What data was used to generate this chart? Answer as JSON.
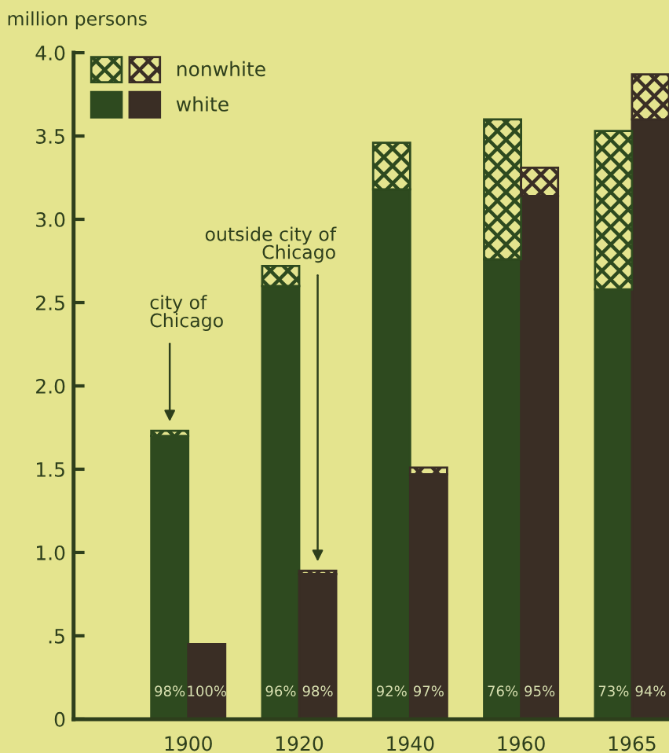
{
  "chart_data": {
    "type": "bar",
    "stacked": true,
    "ylabel": "million persons",
    "categories": [
      "1900",
      null,
      null,
      "1920",
      null,
      null,
      "1940",
      null,
      null,
      "1960",
      null,
      null,
      "1965",
      null
    ],
    "series": [
      {
        "name": "white",
        "colors": [
          "#2e4a1f",
          "#3a2e25",
          null,
          "#2e4a1f",
          "#3a2e25",
          null,
          "#2e4a1f",
          "#3a2e25",
          null,
          "#2e4a1f",
          "#3a2e25",
          null,
          "#2e4a1f",
          "#3a2e25"
        ],
        "values": [
          1.7,
          0.45,
          null,
          2.6,
          0.87,
          null,
          3.18,
          1.47,
          null,
          2.76,
          3.14,
          null,
          2.58,
          3.6
        ]
      },
      {
        "name": "nonwhite",
        "colors": [
          "#2e4a1f",
          "#3a2e25",
          null,
          "#2e4a1f",
          "#3a2e25",
          null,
          "#2e4a1f",
          "#3a2e25",
          null,
          "#2e4a1f",
          "#3a2e25",
          null,
          "#2e4a1f",
          "#3a2e25"
        ],
        "values": [
          0.03,
          null,
          null,
          0.12,
          0.02,
          null,
          0.28,
          0.04,
          null,
          0.84,
          0.17,
          null,
          0.95,
          0.27
        ]
      }
    ],
    "ylim": [
      0,
      4.0
    ],
    "yticks": [
      0,
      {
        "value": 0.5,
        "label": ".5"
      },
      {
        "value": 1.0,
        "label": "1.0"
      },
      {
        "value": 1.5,
        "label": "1.5"
      },
      {
        "value": 2.0,
        "label": "2.0"
      },
      {
        "value": 2.5,
        "label": "2.5"
      },
      {
        "value": 3.0,
        "label": "3.0"
      },
      {
        "value": 3.5,
        "label": "3.5"
      },
      {
        "value": 4.0,
        "label": "4.0"
      }
    ],
    "annotations": [
      "city of\nChicago",
      "outside city of\nChicago",
      "98%",
      "100%",
      "96%",
      "98%",
      "92%",
      "97%",
      "76%",
      "95%",
      "73%",
      "94%"
    ],
    "legend": "top left",
    "grid": false
  }
}
